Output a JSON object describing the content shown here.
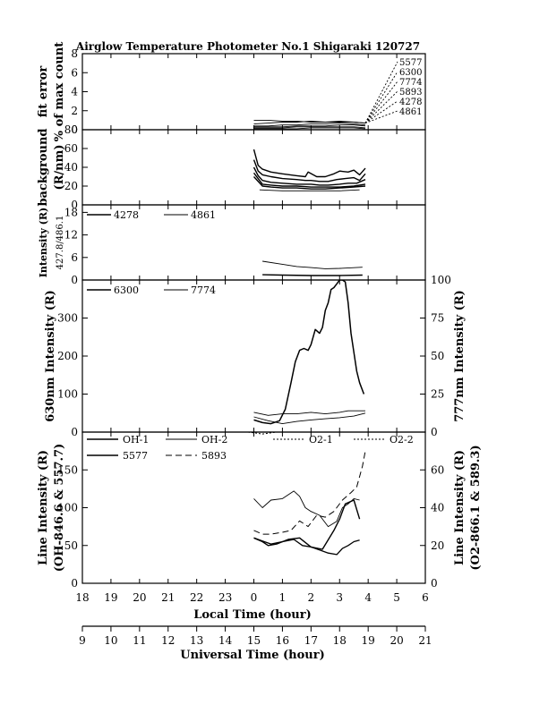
{
  "title": "Airglow Temperature Photometer No.1   Shigaraki   120727",
  "chart_data": [
    {
      "id": "fit",
      "type": "line",
      "ylabel": "fit error",
      "ylabel2": "% of max count",
      "ylim": [
        0,
        8
      ],
      "yticks": [
        0,
        2,
        4,
        6,
        8
      ],
      "fan_labels": [
        "5577",
        "6300",
        "7774",
        "5893",
        "4278",
        "4861"
      ],
      "series": [
        {
          "name": "5577",
          "style": "solid",
          "width": 0.9,
          "x": [
            0,
            0.5,
            1,
            1.5,
            2,
            2.5,
            3,
            3.5,
            3.9
          ],
          "y": [
            1.0,
            1.0,
            0.9,
            0.9,
            0.8,
            0.8,
            0.8,
            0.8,
            0.7
          ]
        },
        {
          "name": "6300",
          "style": "solid",
          "width": 0.9,
          "x": [
            0,
            0.5,
            1,
            1.5,
            2,
            2.5,
            3,
            3.5,
            3.9
          ],
          "y": [
            0.6,
            0.7,
            0.8,
            0.8,
            0.9,
            0.8,
            0.9,
            0.8,
            0.7
          ]
        },
        {
          "name": "7774",
          "style": "solid",
          "width": 0.9,
          "x": [
            0,
            0.5,
            1,
            1.5,
            2,
            2.5,
            3,
            3.5,
            3.9
          ],
          "y": [
            0.4,
            0.4,
            0.5,
            0.5,
            0.6,
            0.6,
            0.7,
            0.6,
            0.5
          ]
        },
        {
          "name": "5893",
          "style": "solid",
          "width": 0.9,
          "x": [
            0,
            0.5,
            1,
            1.5,
            2,
            2.5,
            3,
            3.5,
            3.9
          ],
          "y": [
            0.3,
            0.3,
            0.3,
            0.4,
            0.4,
            0.4,
            0.5,
            0.5,
            0.4
          ]
        },
        {
          "name": "4278",
          "style": "solid",
          "width": 0.9,
          "x": [
            0,
            0.5,
            1,
            1.5,
            2,
            2.5,
            3,
            3.5,
            3.9
          ],
          "y": [
            0.2,
            0.2,
            0.2,
            0.3,
            0.3,
            0.3,
            0.3,
            0.3,
            0.2
          ]
        },
        {
          "name": "4861",
          "style": "solid",
          "width": 0.9,
          "x": [
            0,
            0.5,
            1,
            1.5,
            2,
            2.5,
            3,
            3.5,
            3.9
          ],
          "y": [
            0.1,
            0.1,
            0.1,
            0.1,
            0.2,
            0.2,
            0.2,
            0.2,
            0.1
          ]
        }
      ]
    },
    {
      "id": "bg",
      "type": "line",
      "ylabel": "background",
      "ylabel2": "(R/nm)",
      "ylim": [
        0,
        80
      ],
      "yticks": [
        0,
        20,
        40,
        60,
        80
      ],
      "series": [
        {
          "name": "bg-a",
          "style": "solid",
          "width": 1.4,
          "x": [
            0,
            0.15,
            0.3,
            0.6,
            1,
            1.5,
            1.8,
            1.9,
            2.2,
            2.5,
            2.8,
            3.0,
            3.3,
            3.5,
            3.7,
            3.9
          ],
          "y": [
            59,
            42,
            38,
            35,
            33,
            31,
            30,
            35,
            30,
            30,
            33,
            36,
            35,
            37,
            32,
            39
          ]
        },
        {
          "name": "bg-b",
          "style": "solid",
          "width": 1.4,
          "x": [
            0,
            0.15,
            0.3,
            0.6,
            1,
            1.5,
            1.8,
            2.0,
            2.3,
            2.6,
            2.9,
            3.2,
            3.5,
            3.7,
            3.9
          ],
          "y": [
            48,
            36,
            32,
            30,
            28,
            27,
            26,
            26,
            25,
            25,
            27,
            28,
            29,
            26,
            33
          ]
        },
        {
          "name": "bg-c",
          "style": "solid",
          "width": 1.4,
          "x": [
            0,
            0.15,
            0.3,
            0.6,
            1,
            1.5,
            2.0,
            2.3,
            2.6,
            3.0,
            3.3,
            3.6,
            3.9
          ],
          "y": [
            40,
            31,
            26,
            24,
            23,
            22,
            22,
            21,
            21,
            22,
            23,
            23,
            27
          ]
        },
        {
          "name": "bg-d",
          "style": "solid",
          "width": 1.4,
          "x": [
            0,
            0.3,
            0.6,
            1,
            1.5,
            2.0,
            2.5,
            3.0,
            3.5,
            3.9
          ],
          "y": [
            34,
            22,
            21,
            20,
            20,
            19,
            19,
            19,
            20,
            22
          ]
        },
        {
          "name": "bg-e",
          "style": "solid",
          "width": 1.4,
          "x": [
            0,
            0.3,
            0.6,
            1,
            1.5,
            2.0,
            2.5,
            3.0,
            3.5,
            3.9
          ],
          "y": [
            30,
            20,
            19,
            18,
            18,
            17,
            17,
            18,
            19,
            20
          ]
        },
        {
          "name": "bg-f",
          "style": "solid",
          "width": 0.9,
          "x": [
            0.2,
            1,
            2,
            3,
            3.7
          ],
          "y": [
            16,
            15,
            15,
            15,
            16
          ]
        }
      ]
    },
    {
      "id": "blue",
      "type": "line",
      "ylabel": "Intensity (R)",
      "ylabel2": "427.8/486.1",
      "ylim": [
        0,
        20
      ],
      "yticks": [
        0,
        6,
        12,
        18
      ],
      "legend": [
        "4278",
        "4861"
      ],
      "series": [
        {
          "name": "4278",
          "style": "solid",
          "width": 1.4,
          "x": [
            0.3,
            1,
            2,
            3,
            3.8
          ],
          "y": [
            1.4,
            1.3,
            1.2,
            1.2,
            1.3
          ]
        },
        {
          "name": "4861",
          "style": "solid",
          "width": 0.9,
          "x": [
            0.3,
            1,
            1.5,
            2,
            2.5,
            3,
            3.8
          ],
          "y": [
            5.0,
            4.2,
            3.6,
            3.3,
            3.0,
            3.1,
            3.4
          ]
        }
      ]
    },
    {
      "id": "red",
      "type": "line",
      "ylabel": "630nm Intensity (R)",
      "ylabel_right": "777nm Intensity (R)",
      "ylim": [
        0,
        400
      ],
      "yticks": [
        0,
        100,
        200,
        300
      ],
      "ylim_right": [
        0,
        100
      ],
      "yticks_right": [
        0,
        25,
        50,
        75,
        100
      ],
      "legend": [
        "6300",
        "7774"
      ],
      "series": [
        {
          "name": "6300",
          "axis": "left",
          "style": "solid",
          "width": 1.5,
          "x": [
            0,
            0.3,
            0.6,
            0.9,
            1.1,
            1.3,
            1.45,
            1.6,
            1.75,
            1.9,
            2.0,
            2.15,
            2.3,
            2.4,
            2.5,
            2.6,
            2.7,
            2.8,
            2.9,
            3.0,
            3.1,
            3.2,
            3.3,
            3.4,
            3.5,
            3.6,
            3.7,
            3.85
          ],
          "y": [
            32,
            25,
            22,
            30,
            60,
            130,
            185,
            215,
            220,
            215,
            230,
            270,
            260,
            275,
            320,
            340,
            375,
            380,
            390,
            400,
            400,
            395,
            340,
            260,
            210,
            160,
            130,
            100
          ]
        },
        {
          "name": "7774",
          "axis": "right",
          "style": "solid",
          "width": 0.9,
          "x": [
            0,
            0.5,
            1,
            1.5,
            2,
            2.5,
            3,
            3.3,
            3.6,
            3.9
          ],
          "y": [
            13,
            11,
            12,
            12,
            13,
            12,
            13,
            14,
            14,
            14
          ]
        },
        {
          "name": "6300-lower",
          "axis": "left",
          "style": "solid",
          "width": 0.9,
          "x": [
            0,
            0.5,
            1,
            1.5,
            2,
            2.5,
            3,
            3.5,
            3.9
          ],
          "y": [
            40,
            30,
            22,
            28,
            32,
            35,
            38,
            42,
            50
          ]
        }
      ]
    },
    {
      "id": "line",
      "type": "line",
      "ylabel": "Line Intensity (R)",
      "ylabel2": "(OH-846.6 & 557.7)",
      "ylabel_right": "Line Intensity (R)",
      "ylabel_right2": "(O2-866.1 & 589.3)",
      "ylim": [
        0,
        200
      ],
      "yticks": [
        0,
        50,
        100,
        150
      ],
      "ylim_right": [
        0,
        80
      ],
      "yticks_right": [
        0,
        20,
        40,
        60
      ],
      "legend": [
        "OH-1",
        "OH-2",
        "O2-1",
        "O2-2",
        "5577",
        "5893"
      ],
      "series": [
        {
          "name": "OH-1",
          "axis": "left",
          "style": "solid",
          "width": 1.3,
          "x": [
            0,
            0.3,
            0.6,
            1,
            1.4,
            1.7,
            2.0,
            2.3,
            2.6,
            2.9,
            3.1,
            3.3,
            3.5,
            3.7
          ],
          "y": [
            60,
            56,
            52,
            55,
            58,
            50,
            48,
            44,
            40,
            38,
            46,
            50,
            55,
            57
          ]
        },
        {
          "name": "OH-2",
          "axis": "left",
          "style": "solid",
          "width": 0.9,
          "x": [
            0,
            0.3,
            0.6,
            1,
            1.4,
            1.6,
            1.8,
            2.0,
            2.3,
            2.6,
            2.9,
            3.1,
            3.3,
            3.5,
            3.7
          ],
          "y": [
            112,
            100,
            110,
            112,
            122,
            115,
            100,
            95,
            90,
            75,
            82,
            100,
            105,
            112,
            110
          ]
        },
        {
          "name": "O2-1",
          "axis": "right",
          "style": "dotted",
          "width": 1.0,
          "x": [
            -0.2,
            0.3,
            0.8
          ],
          "y": [
            80,
            79,
            80
          ]
        },
        {
          "name": "O2-2",
          "axis": "right",
          "style": "dotted",
          "width": 1.0,
          "x": [
            2.0,
            2.8,
            3.5
          ],
          "y": [
            80,
            80,
            80
          ]
        },
        {
          "name": "5577",
          "axis": "left",
          "style": "solid",
          "width": 1.4,
          "x": [
            0,
            0.3,
            0.5,
            0.8,
            1.2,
            1.6,
            2.0,
            2.4,
            2.8,
            3.0,
            3.2,
            3.5,
            3.7
          ],
          "y": [
            60,
            55,
            50,
            52,
            58,
            60,
            48,
            45,
            70,
            85,
            105,
            110,
            85
          ]
        },
        {
          "name": "5893",
          "axis": "right",
          "style": "dashed",
          "width": 1.0,
          "x": [
            0,
            0.3,
            0.6,
            1,
            1.3,
            1.6,
            1.9,
            2.2,
            2.5,
            2.8,
            3.1,
            3.4,
            3.6,
            3.8,
            3.9
          ],
          "y": [
            28,
            26,
            26,
            27,
            28,
            33,
            30,
            36,
            35,
            38,
            44,
            48,
            51,
            62,
            70
          ]
        }
      ]
    }
  ],
  "x_local": {
    "label": "Local Time (hour)",
    "ticks": [
      "18",
      "19",
      "20",
      "21",
      "22",
      "23",
      "0",
      "1",
      "2",
      "3",
      "4",
      "5",
      "6"
    ]
  },
  "x_universal": {
    "label": "Universal Time (hour)",
    "ticks": [
      "9",
      "10",
      "11",
      "12",
      "13",
      "14",
      "15",
      "16",
      "17",
      "18",
      "19",
      "20",
      "21"
    ]
  }
}
